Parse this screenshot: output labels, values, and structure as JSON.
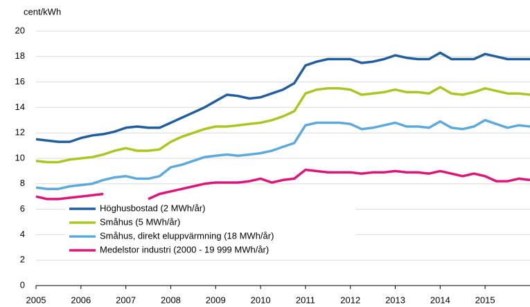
{
  "chart_data": {
    "type": "line",
    "y_axis_label": "cent/kWh",
    "x": [
      2005,
      2005.25,
      2005.5,
      2005.75,
      2006,
      2006.25,
      2006.5,
      2006.75,
      2007,
      2007.25,
      2007.5,
      2007.75,
      2008,
      2008.25,
      2008.5,
      2008.75,
      2009,
      2009.25,
      2009.5,
      2009.75,
      2010,
      2010.25,
      2010.5,
      2010.75,
      2011,
      2011.25,
      2011.5,
      2011.75,
      2012,
      2012.25,
      2012.5,
      2012.75,
      2013,
      2013.25,
      2013.5,
      2013.75,
      2014,
      2014.25,
      2014.5,
      2014.75,
      2015,
      2015.25,
      2015.5,
      2015.75,
      2016
    ],
    "series": [
      {
        "name": "Höghusbostad (2 MWh/år)",
        "color": "#1f5fa0",
        "values": [
          11.5,
          11.4,
          11.3,
          11.3,
          11.6,
          11.8,
          11.9,
          12.1,
          12.4,
          12.5,
          12.4,
          12.4,
          12.8,
          13.2,
          13.6,
          14.0,
          14.5,
          15.0,
          14.9,
          14.7,
          14.8,
          15.1,
          15.4,
          15.9,
          17.3,
          17.6,
          17.8,
          17.8,
          17.8,
          17.5,
          17.6,
          17.8,
          18.1,
          17.9,
          17.8,
          17.8,
          18.3,
          17.8,
          17.8,
          17.8,
          18.2,
          18.0,
          17.8,
          17.8,
          17.8
        ]
      },
      {
        "name": "Småhus (5 MWh/år)",
        "color": "#a8c81e",
        "values": [
          9.8,
          9.7,
          9.7,
          9.9,
          10.0,
          10.1,
          10.3,
          10.6,
          10.8,
          10.6,
          10.6,
          10.7,
          11.3,
          11.7,
          12.0,
          12.3,
          12.5,
          12.5,
          12.6,
          12.7,
          12.8,
          13.0,
          13.3,
          13.7,
          15.1,
          15.4,
          15.5,
          15.5,
          15.4,
          15.0,
          15.1,
          15.2,
          15.4,
          15.2,
          15.2,
          15.1,
          15.6,
          15.1,
          15.0,
          15.2,
          15.5,
          15.3,
          15.1,
          15.1,
          15.0
        ]
      },
      {
        "name": "Småhus, direkt eluppvärmning (18 MWh/år)",
        "color": "#5aaae0",
        "values": [
          7.7,
          7.6,
          7.6,
          7.8,
          7.9,
          8.0,
          8.3,
          8.5,
          8.6,
          8.4,
          8.4,
          8.6,
          9.3,
          9.5,
          9.8,
          10.1,
          10.2,
          10.3,
          10.2,
          10.3,
          10.4,
          10.6,
          10.9,
          11.2,
          12.6,
          12.8,
          12.8,
          12.8,
          12.7,
          12.3,
          12.4,
          12.6,
          12.8,
          12.5,
          12.5,
          12.4,
          12.9,
          12.4,
          12.3,
          12.5,
          13.0,
          12.7,
          12.4,
          12.6,
          12.5
        ]
      },
      {
        "name": "Medelstor industri (2000 - 19 999 MWh/år)",
        "color": "#e0147a",
        "values": [
          7.0,
          6.8,
          6.8,
          6.9,
          7.0,
          7.1,
          7.2,
          null,
          null,
          null,
          6.8,
          7.2,
          7.4,
          7.6,
          7.8,
          8.0,
          8.1,
          8.1,
          8.1,
          8.2,
          8.4,
          8.1,
          8.3,
          8.4,
          9.1,
          9.0,
          8.9,
          8.9,
          8.9,
          8.8,
          8.9,
          8.9,
          9.0,
          8.9,
          8.9,
          8.8,
          9.0,
          8.8,
          8.6,
          8.8,
          8.6,
          8.2,
          8.2,
          8.4,
          8.3
        ]
      }
    ],
    "xlim": [
      2005,
      2016
    ],
    "xticks": [
      2005,
      2006,
      2007,
      2008,
      2009,
      2010,
      2011,
      2012,
      2013,
      2014,
      2015
    ],
    "ylim": [
      0,
      20
    ],
    "yticks": [
      0,
      2,
      4,
      6,
      8,
      10,
      12,
      14,
      16,
      18,
      20
    ],
    "grid": true,
    "legend": "lower left"
  }
}
